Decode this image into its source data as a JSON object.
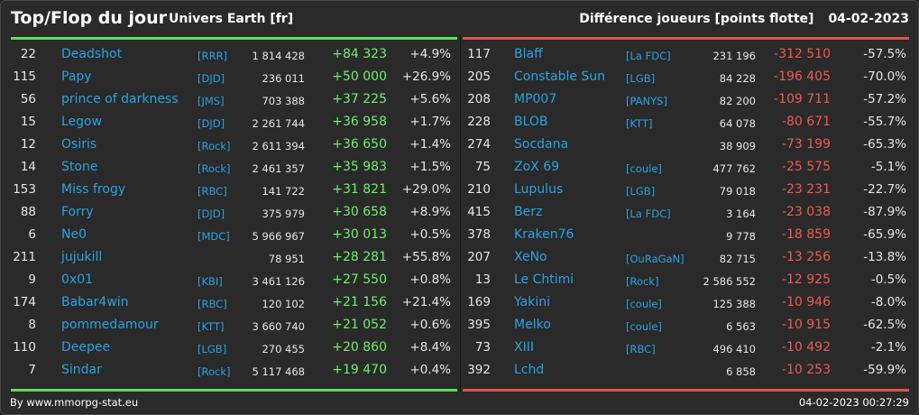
{
  "header": {
    "title": "Top/Flop du jour",
    "universe": "Univers Earth [fr]",
    "metric": "Différence joueurs [points flotte]",
    "date": "04-02-2023"
  },
  "colors": {
    "positive": "#6ef06a",
    "negative": "#ef5a52",
    "link": "#29a3e2",
    "top_bar": "#55e15a",
    "flop_bar": "#e0534c"
  },
  "top": [
    {
      "rank": "22",
      "name": "Deadshot",
      "ally": "[RRR]",
      "points": "1 814 428",
      "diff": "+84 323",
      "pct": "+4.9%"
    },
    {
      "rank": "115",
      "name": "Papy",
      "ally": "[DJD]",
      "points": "236 011",
      "diff": "+50 000",
      "pct": "+26.9%"
    },
    {
      "rank": "56",
      "name": "prince of darkness",
      "ally": "[JMS]",
      "points": "703 388",
      "diff": "+37 225",
      "pct": "+5.6%"
    },
    {
      "rank": "15",
      "name": "Legow",
      "ally": "[DJD]",
      "points": "2 261 744",
      "diff": "+36 958",
      "pct": "+1.7%"
    },
    {
      "rank": "12",
      "name": "Osiris",
      "ally": "[Rock]",
      "points": "2 611 394",
      "diff": "+36 650",
      "pct": "+1.4%"
    },
    {
      "rank": "14",
      "name": "Stone",
      "ally": "[Rock]",
      "points": "2 461 357",
      "diff": "+35 983",
      "pct": "+1.5%"
    },
    {
      "rank": "153",
      "name": "Miss frogy",
      "ally": "[RBC]",
      "points": "141 722",
      "diff": "+31 821",
      "pct": "+29.0%"
    },
    {
      "rank": "88",
      "name": "Forry",
      "ally": "[DJD]",
      "points": "375 979",
      "diff": "+30 658",
      "pct": "+8.9%"
    },
    {
      "rank": "6",
      "name": "Ne0",
      "ally": "[MDC]",
      "points": "5 966 967",
      "diff": "+30 013",
      "pct": "+0.5%"
    },
    {
      "rank": "211",
      "name": "jujukill",
      "ally": "",
      "points": "78 951",
      "diff": "+28 281",
      "pct": "+55.8%"
    },
    {
      "rank": "9",
      "name": "0x01",
      "ally": "[KBI]",
      "points": "3 461 126",
      "diff": "+27 550",
      "pct": "+0.8%"
    },
    {
      "rank": "174",
      "name": "Babar4win",
      "ally": "[RBC]",
      "points": "120 102",
      "diff": "+21 156",
      "pct": "+21.4%"
    },
    {
      "rank": "8",
      "name": "pommedamour",
      "ally": "[KTT]",
      "points": "3 660 740",
      "diff": "+21 052",
      "pct": "+0.6%"
    },
    {
      "rank": "110",
      "name": "Deepee",
      "ally": "[LGB]",
      "points": "270 455",
      "diff": "+20 860",
      "pct": "+8.4%"
    },
    {
      "rank": "7",
      "name": "Sindar",
      "ally": "[Rock]",
      "points": "5 117 468",
      "diff": "+19 470",
      "pct": "+0.4%"
    }
  ],
  "flop": [
    {
      "rank": "117",
      "name": "Blaff",
      "ally": "[La FDC]",
      "points": "231 196",
      "diff": "-312 510",
      "pct": "-57.5%"
    },
    {
      "rank": "205",
      "name": "Constable Sun",
      "ally": "[LGB]",
      "points": "84 228",
      "diff": "-196 405",
      "pct": "-70.0%"
    },
    {
      "rank": "208",
      "name": "MP007",
      "ally": "[PANYS]",
      "points": "82 200",
      "diff": "-109 711",
      "pct": "-57.2%"
    },
    {
      "rank": "228",
      "name": "BLOB",
      "ally": "[KTT]",
      "points": "64 078",
      "diff": "-80 671",
      "pct": "-55.7%"
    },
    {
      "rank": "274",
      "name": "Socdana",
      "ally": "",
      "points": "38 909",
      "diff": "-73 199",
      "pct": "-65.3%"
    },
    {
      "rank": "75",
      "name": "ZoX 69",
      "ally": "[coule]",
      "points": "477 762",
      "diff": "-25 575",
      "pct": "-5.1%"
    },
    {
      "rank": "210",
      "name": "Lupulus",
      "ally": "[LGB]",
      "points": "79 018",
      "diff": "-23 231",
      "pct": "-22.7%"
    },
    {
      "rank": "415",
      "name": "Berz",
      "ally": "[La FDC]",
      "points": "3 164",
      "diff": "-23 038",
      "pct": "-87.9%"
    },
    {
      "rank": "378",
      "name": "Kraken76",
      "ally": "",
      "points": "9 778",
      "diff": "-18 859",
      "pct": "-65.9%"
    },
    {
      "rank": "207",
      "name": "XeNo",
      "ally": "[OuRaGaN]",
      "points": "82 715",
      "diff": "-13 256",
      "pct": "-13.8%"
    },
    {
      "rank": "13",
      "name": "Le Chtimi",
      "ally": "[Rock]",
      "points": "2 586 552",
      "diff": "-12 925",
      "pct": "-0.5%"
    },
    {
      "rank": "169",
      "name": "Yakini",
      "ally": "[coule]",
      "points": "125 388",
      "diff": "-10 946",
      "pct": "-8.0%"
    },
    {
      "rank": "395",
      "name": "Melko",
      "ally": "[coule]",
      "points": "6 563",
      "diff": "-10 915",
      "pct": "-62.5%"
    },
    {
      "rank": "73",
      "name": "XIII",
      "ally": "[RBC]",
      "points": "496 410",
      "diff": "-10 492",
      "pct": "-2.1%"
    },
    {
      "rank": "392",
      "name": "Lchd",
      "ally": "",
      "points": "6 858",
      "diff": "-10 253",
      "pct": "-59.9%"
    }
  ],
  "footer": {
    "source": "By www.mmorpg-stat.eu",
    "timestamp": "04-02-2023 00:27:29"
  }
}
